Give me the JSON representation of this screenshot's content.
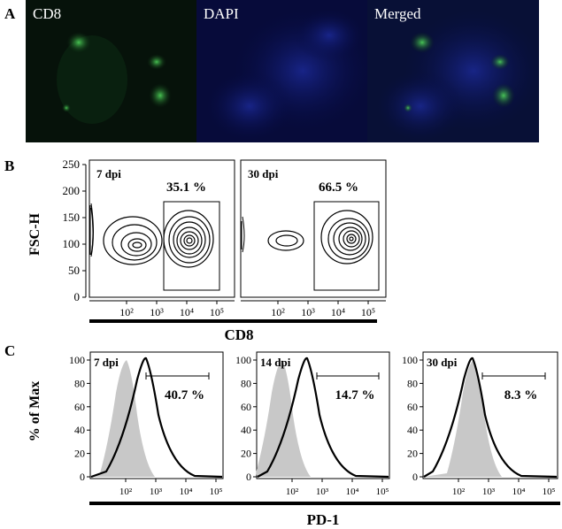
{
  "panel_a": {
    "letter": "A",
    "images": [
      {
        "label": "CD8",
        "stain": "green"
      },
      {
        "label": "DAPI",
        "stain": "blue"
      },
      {
        "label": "Merged",
        "stain": "green+blue"
      }
    ]
  },
  "chart_data": [
    {
      "type": "contour",
      "panel": "B",
      "ylabel": "FSC-H",
      "xlabel": "CD8",
      "y_ticks": [
        "0",
        "50",
        "100",
        "150",
        "200",
        "250"
      ],
      "x_ticks": [
        "10²",
        "10³",
        "10⁴",
        "10⁵"
      ],
      "plots": [
        {
          "timepoint": "7 dpi",
          "gate_percent": "35.1 %"
        },
        {
          "timepoint": "30 dpi",
          "gate_percent": "66.5 %"
        }
      ]
    },
    {
      "type": "histogram",
      "panel": "C",
      "ylabel": "% of Max",
      "xlabel": "PD-1",
      "y_ticks": [
        "0",
        "20",
        "40",
        "60",
        "80",
        "100"
      ],
      "x_ticks": [
        "10²",
        "10³",
        "10⁴",
        "10⁵"
      ],
      "plots": [
        {
          "timepoint": "7 dpi",
          "gate_percent": "40.7 %"
        },
        {
          "timepoint": "14 dpi",
          "gate_percent": "14.7 %"
        },
        {
          "timepoint": "30 dpi",
          "gate_percent": "8.3 %"
        }
      ]
    }
  ]
}
